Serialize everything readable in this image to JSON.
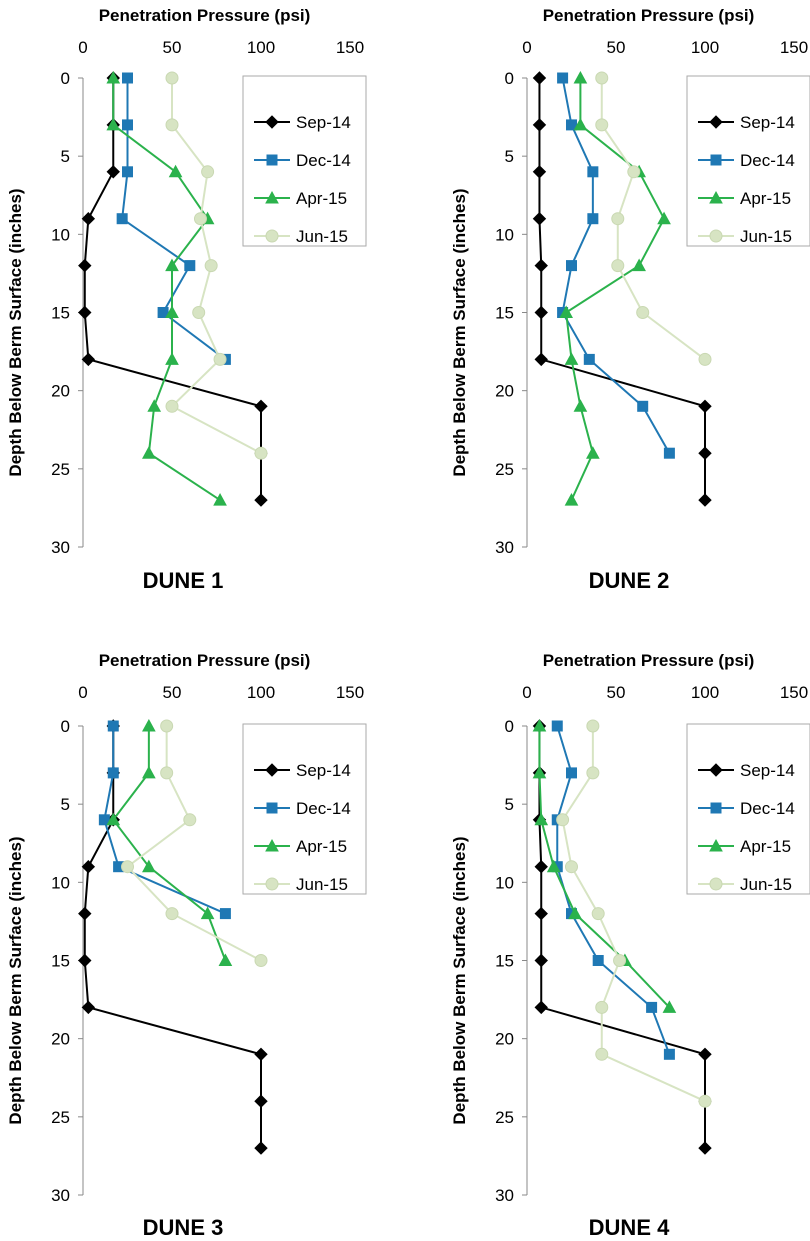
{
  "colors": {
    "Sep-14": "#000000",
    "Dec-14": "#1f78b4",
    "Apr-15": "#2bb24c",
    "Jun-15": "#d7e4c3"
  },
  "markers": {
    "Sep-14": "diamond",
    "Dec-14": "square",
    "Apr-15": "triangle",
    "Jun-15": "circle"
  },
  "chart_data": [
    {
      "type": "line",
      "title": "DUNE 1",
      "xlabel": "Penetration Pressure (psi)",
      "ylabel": "Depth Below Berm Surface (inches)",
      "xlim": [
        0,
        150
      ],
      "ylim": [
        0,
        30
      ],
      "x_ticks": [
        0,
        50,
        100,
        150
      ],
      "y_ticks": [
        0,
        5,
        10,
        15,
        20,
        25,
        30
      ],
      "x_axis_position": "top",
      "y_inverted": true,
      "legend": "right",
      "series": [
        {
          "name": "Sep-14",
          "points": [
            [
              17,
              0
            ],
            [
              17,
              3
            ],
            [
              17,
              6
            ],
            [
              3,
              9
            ],
            [
              1,
              12
            ],
            [
              1,
              15
            ],
            [
              3,
              18
            ],
            [
              100,
              21
            ],
            [
              100,
              24
            ],
            [
              100,
              27
            ]
          ]
        },
        {
          "name": "Dec-14",
          "points": [
            [
              25,
              0
            ],
            [
              25,
              3
            ],
            [
              25,
              6
            ],
            [
              22,
              9
            ],
            [
              60,
              12
            ],
            [
              45,
              15
            ],
            [
              80,
              18
            ]
          ]
        },
        {
          "name": "Apr-15",
          "points": [
            [
              17,
              0
            ],
            [
              17,
              3
            ],
            [
              52,
              6
            ],
            [
              70,
              9
            ],
            [
              50,
              12
            ],
            [
              50,
              15
            ],
            [
              50,
              18
            ],
            [
              40,
              21
            ],
            [
              37,
              24
            ],
            [
              77,
              27
            ]
          ]
        },
        {
          "name": "Jun-15",
          "points": [
            [
              50,
              0
            ],
            [
              50,
              3
            ],
            [
              70,
              6
            ],
            [
              66,
              9
            ],
            [
              72,
              12
            ],
            [
              65,
              15
            ],
            [
              77,
              18
            ],
            [
              50,
              21
            ],
            [
              100,
              24
            ]
          ]
        }
      ]
    },
    {
      "type": "line",
      "title": "DUNE 2",
      "xlabel": "Penetration Pressure (psi)",
      "ylabel": "Depth Below Berm Surface (inches)",
      "xlim": [
        0,
        150
      ],
      "ylim": [
        0,
        30
      ],
      "x_ticks": [
        0,
        50,
        100,
        150
      ],
      "y_ticks": [
        0,
        5,
        10,
        15,
        20,
        25,
        30
      ],
      "x_axis_position": "top",
      "y_inverted": true,
      "legend": "right",
      "series": [
        {
          "name": "Sep-14",
          "points": [
            [
              7,
              0
            ],
            [
              7,
              3
            ],
            [
              7,
              6
            ],
            [
              7,
              9
            ],
            [
              8,
              12
            ],
            [
              8,
              15
            ],
            [
              8,
              18
            ],
            [
              100,
              21
            ],
            [
              100,
              24
            ],
            [
              100,
              27
            ]
          ]
        },
        {
          "name": "Dec-14",
          "points": [
            [
              20,
              0
            ],
            [
              25,
              3
            ],
            [
              37,
              6
            ],
            [
              37,
              9
            ],
            [
              25,
              12
            ],
            [
              20,
              15
            ],
            [
              35,
              18
            ],
            [
              65,
              21
            ],
            [
              80,
              24
            ]
          ]
        },
        {
          "name": "Apr-15",
          "points": [
            [
              30,
              0
            ],
            [
              30,
              3
            ],
            [
              63,
              6
            ],
            [
              77,
              9
            ],
            [
              63,
              12
            ],
            [
              22,
              15
            ],
            [
              25,
              18
            ],
            [
              30,
              21
            ],
            [
              37,
              24
            ],
            [
              25,
              27
            ]
          ]
        },
        {
          "name": "Jun-15",
          "points": [
            [
              42,
              0
            ],
            [
              42,
              3
            ],
            [
              60,
              6
            ],
            [
              51,
              9
            ],
            [
              51,
              12
            ],
            [
              65,
              15
            ],
            [
              100,
              18
            ]
          ]
        }
      ]
    },
    {
      "type": "line",
      "title": "DUNE 3",
      "xlabel": "Penetration Pressure (psi)",
      "ylabel": "Depth Below Berm Surface (inches)",
      "xlim": [
        0,
        150
      ],
      "ylim": [
        0,
        30
      ],
      "x_ticks": [
        0,
        50,
        100,
        150
      ],
      "y_ticks": [
        0,
        5,
        10,
        15,
        20,
        25,
        30
      ],
      "x_axis_position": "top",
      "y_inverted": true,
      "legend": "right",
      "series": [
        {
          "name": "Sep-14",
          "points": [
            [
              17,
              0
            ],
            [
              17,
              3
            ],
            [
              17,
              6
            ],
            [
              3,
              9
            ],
            [
              1,
              12
            ],
            [
              1,
              15
            ],
            [
              3,
              18
            ],
            [
              100,
              21
            ],
            [
              100,
              24
            ],
            [
              100,
              27
            ]
          ]
        },
        {
          "name": "Dec-14",
          "points": [
            [
              17,
              0
            ],
            [
              17,
              3
            ],
            [
              12,
              6
            ],
            [
              20,
              9
            ],
            [
              80,
              12
            ]
          ]
        },
        {
          "name": "Apr-15",
          "points": [
            [
              37,
              0
            ],
            [
              37,
              3
            ],
            [
              17,
              6
            ],
            [
              37,
              9
            ],
            [
              70,
              12
            ],
            [
              80,
              15
            ]
          ]
        },
        {
          "name": "Jun-15",
          "points": [
            [
              47,
              0
            ],
            [
              47,
              3
            ],
            [
              60,
              6
            ],
            [
              25,
              9
            ],
            [
              50,
              12
            ],
            [
              100,
              15
            ]
          ]
        }
      ]
    },
    {
      "type": "line",
      "title": "DUNE 4",
      "xlabel": "Penetration Pressure (psi)",
      "ylabel": "Depth Below Berm Surface (inches)",
      "xlim": [
        0,
        150
      ],
      "ylim": [
        0,
        30
      ],
      "x_ticks": [
        0,
        50,
        100,
        150
      ],
      "y_ticks": [
        0,
        5,
        10,
        15,
        20,
        25,
        30
      ],
      "x_axis_position": "top",
      "y_inverted": true,
      "legend": "right",
      "series": [
        {
          "name": "Sep-14",
          "points": [
            [
              7,
              0
            ],
            [
              7,
              3
            ],
            [
              7,
              6
            ],
            [
              8,
              9
            ],
            [
              8,
              12
            ],
            [
              8,
              15
            ],
            [
              8,
              18
            ],
            [
              100,
              21
            ],
            [
              100,
              24
            ],
            [
              100,
              27
            ]
          ]
        },
        {
          "name": "Dec-14",
          "points": [
            [
              17,
              0
            ],
            [
              25,
              3
            ],
            [
              17,
              6
            ],
            [
              17,
              9
            ],
            [
              25,
              12
            ],
            [
              40,
              15
            ],
            [
              70,
              18
            ],
            [
              80,
              21
            ]
          ]
        },
        {
          "name": "Apr-15",
          "points": [
            [
              7,
              0
            ],
            [
              7,
              3
            ],
            [
              8,
              6
            ],
            [
              15,
              9
            ],
            [
              27,
              12
            ],
            [
              55,
              15
            ],
            [
              80,
              18
            ]
          ]
        },
        {
          "name": "Jun-15",
          "points": [
            [
              37,
              0
            ],
            [
              37,
              3
            ],
            [
              20,
              6
            ],
            [
              25,
              9
            ],
            [
              40,
              12
            ],
            [
              52,
              15
            ],
            [
              42,
              18
            ],
            [
              42,
              21
            ],
            [
              100,
              24
            ]
          ]
        }
      ]
    }
  ]
}
